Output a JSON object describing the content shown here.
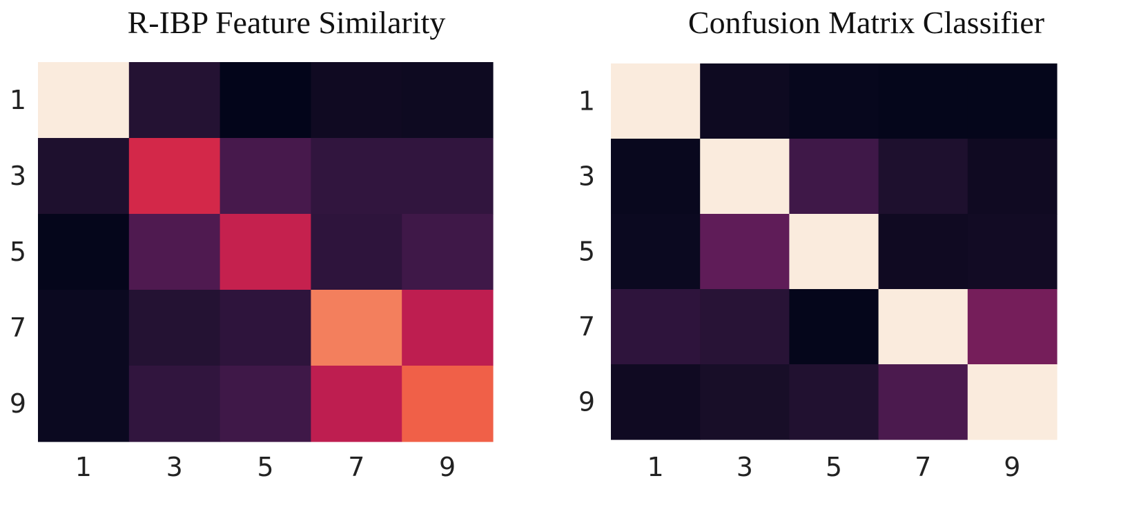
{
  "chart_data": [
    {
      "type": "heatmap",
      "title": "R-IBP Feature Similarity",
      "rows": [
        "1",
        "3",
        "5",
        "7",
        "9"
      ],
      "columns": [
        "1",
        "3",
        "5",
        "7",
        "9"
      ],
      "values": [
        [
          1.0,
          0.14,
          0.0,
          0.06,
          0.05
        ],
        [
          0.12,
          0.56,
          0.24,
          0.18,
          0.18
        ],
        [
          0.01,
          0.26,
          0.52,
          0.17,
          0.22
        ],
        [
          0.04,
          0.14,
          0.17,
          0.76,
          0.5
        ],
        [
          0.04,
          0.18,
          0.22,
          0.5,
          0.7
        ]
      ],
      "colormap": "rocket",
      "xlabel": "",
      "ylabel": ""
    },
    {
      "type": "heatmap",
      "title": "Confusion Matrix Classifier",
      "rows": [
        "1",
        "3",
        "5",
        "7",
        "9"
      ],
      "columns": [
        "1",
        "3",
        "5",
        "7",
        "9"
      ],
      "values": [
        [
          1.0,
          0.05,
          0.02,
          0.01,
          0.01
        ],
        [
          0.03,
          1.0,
          0.22,
          0.12,
          0.06
        ],
        [
          0.04,
          0.3,
          1.0,
          0.06,
          0.07
        ],
        [
          0.17,
          0.15,
          0.01,
          1.0,
          0.35
        ],
        [
          0.06,
          0.1,
          0.13,
          0.25,
          1.0
        ]
      ],
      "colormap": "rocket",
      "xlabel": "",
      "ylabel": ""
    }
  ]
}
